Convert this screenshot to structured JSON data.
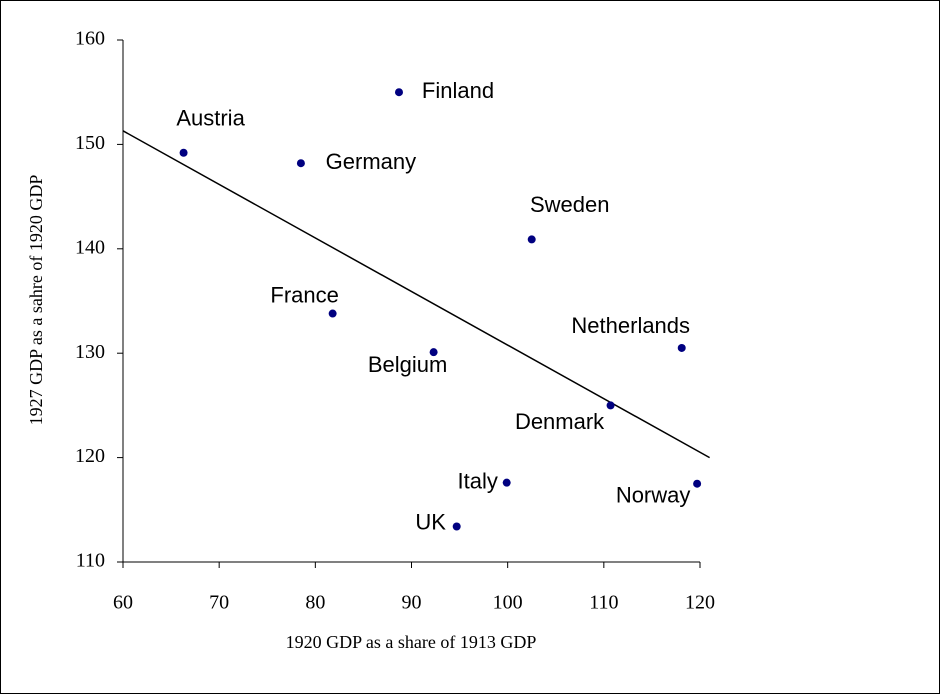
{
  "chart_data": {
    "type": "scatter",
    "x_label": "1920 GDP as a share of 1913 GDP",
    "y_label": "1927 GDP as a sahre of 1920 GDP",
    "labels": [
      "Austria",
      "Finland",
      "Germany",
      "Sweden",
      "France",
      "Belgium",
      "Netherlands",
      "Denmark",
      "Italy",
      "Norway",
      "UK"
    ],
    "x": [
      66.3,
      88.7,
      78.5,
      102.5,
      81.8,
      92.3,
      118.1,
      110.7,
      99.9,
      119.7,
      94.7
    ],
    "y": [
      149.2,
      155.0,
      148.2,
      140.9,
      133.8,
      130.1,
      130.5,
      125.0,
      117.6,
      117.5,
      113.4
    ],
    "color": "#000080",
    "trendline": {
      "x": [
        60,
        121
      ],
      "y": [
        151.3,
        120.0
      ],
      "color": "#000000"
    },
    "xlim": [
      60,
      120
    ],
    "ylim": [
      110,
      160
    ],
    "xticks": [
      60,
      70,
      80,
      90,
      100,
      110,
      120
    ],
    "yticks": [
      110,
      120,
      130,
      140,
      150,
      160
    ]
  }
}
